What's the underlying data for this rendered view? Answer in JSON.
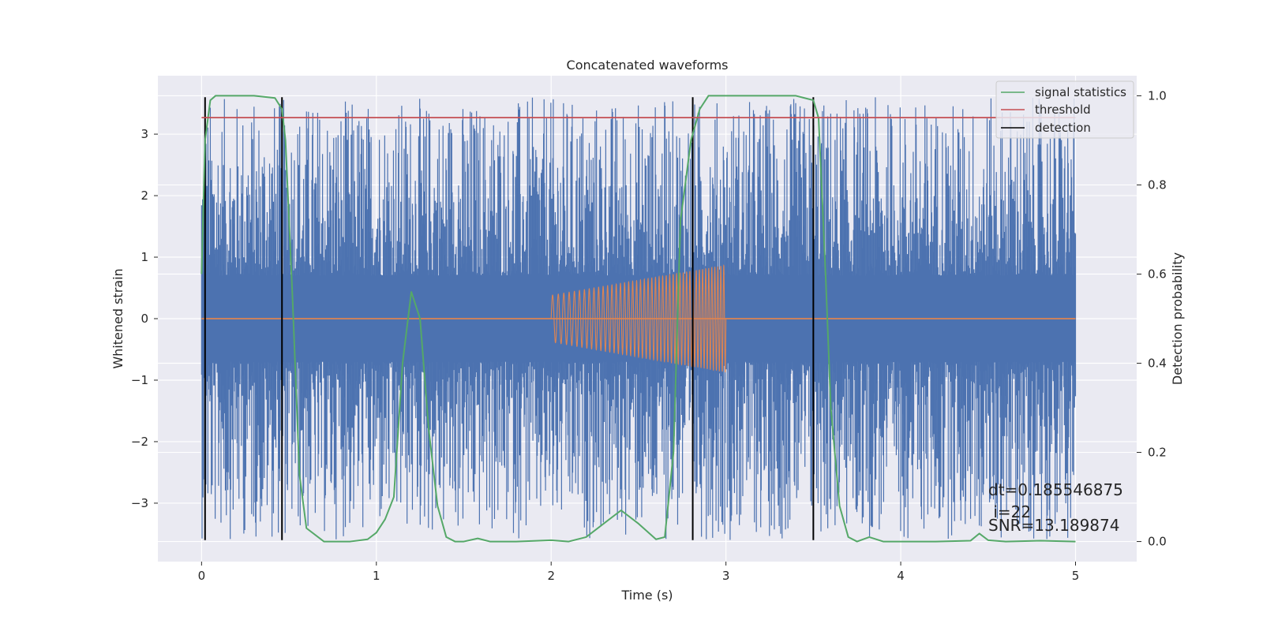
{
  "chart_data": {
    "type": "line",
    "title": "Concatenated waveforms",
    "xlabel": "Time (s)",
    "ylabel": "Whitened strain",
    "y2label": "Detection probability",
    "xlim": [
      -0.25,
      5.35
    ],
    "ylim": [
      -3.95,
      3.95
    ],
    "y2lim": [
      -0.045,
      1.045
    ],
    "xticks": [
      0,
      1,
      2,
      3,
      4,
      5
    ],
    "yticks": [
      -3,
      -2,
      -1,
      0,
      1,
      2,
      3
    ],
    "y2ticks": [
      0.0,
      0.2,
      0.4,
      0.6,
      0.8,
      1.0
    ],
    "xtick_labels": [
      "0",
      "1",
      "2",
      "3",
      "4",
      "5"
    ],
    "ytick_labels": [
      "−3",
      "−2",
      "−1",
      "0",
      "1",
      "2",
      "3"
    ],
    "y2tick_labels": [
      "0.0",
      "0.2",
      "0.4",
      "0.6",
      "0.8",
      "1.0"
    ],
    "grid": true,
    "legend_position": "top-right",
    "legend": [
      {
        "label": "signal statistics",
        "color": "#55a868"
      },
      {
        "label": "threshold",
        "color": "#c44e52"
      },
      {
        "label": "detection",
        "color": "#000000"
      }
    ],
    "noise_series": {
      "axis": "left",
      "color": "#4c72b0",
      "x_range": [
        0,
        5
      ],
      "core_amplitude": 0.7,
      "approx_peak_amplitude": 3.6,
      "description_values_sampled": true
    },
    "injected_chirp": {
      "axis": "left",
      "color": "#dd8452",
      "baseline": 0,
      "x_range": [
        0,
        5
      ],
      "chirp_start": 2.0,
      "chirp_end": 3.0,
      "start_amplitude": 0.38,
      "end_amplitude": 0.87,
      "start_frequency": 30,
      "end_frequency": 60
    },
    "signal_statistics": {
      "axis": "right",
      "color": "#55a868",
      "x": [
        0.0,
        0.02,
        0.05,
        0.08,
        0.15,
        0.3,
        0.42,
        0.46,
        0.48,
        0.52,
        0.56,
        0.6,
        0.7,
        0.85,
        0.95,
        1.0,
        1.05,
        1.1,
        1.15,
        1.2,
        1.25,
        1.3,
        1.35,
        1.4,
        1.45,
        1.5,
        1.58,
        1.65,
        1.8,
        2.0,
        2.1,
        2.2,
        2.3,
        2.4,
        2.5,
        2.6,
        2.65,
        2.7,
        2.74,
        2.8,
        2.85,
        2.9,
        3.0,
        3.2,
        3.4,
        3.5,
        3.53,
        3.57,
        3.6,
        3.65,
        3.7,
        3.75,
        3.82,
        3.9,
        4.0,
        4.2,
        4.4,
        4.45,
        4.5,
        4.6,
        4.8,
        5.0
      ],
      "y": [
        0.6,
        0.9,
        0.99,
        1.0,
        1.0,
        1.0,
        0.995,
        0.97,
        0.9,
        0.55,
        0.15,
        0.03,
        0.0,
        0.0,
        0.005,
        0.02,
        0.05,
        0.1,
        0.4,
        0.56,
        0.5,
        0.25,
        0.08,
        0.01,
        0.0,
        0.0,
        0.007,
        0.0,
        0.0,
        0.003,
        0.0,
        0.01,
        0.04,
        0.07,
        0.04,
        0.005,
        0.01,
        0.2,
        0.72,
        0.9,
        0.97,
        1.0,
        1.0,
        1.0,
        1.0,
        0.99,
        0.95,
        0.6,
        0.3,
        0.08,
        0.01,
        0.0,
        0.01,
        0.0,
        0.0,
        0.0,
        0.002,
        0.018,
        0.003,
        0.0,
        0.002,
        0.0
      ]
    },
    "threshold": {
      "axis": "right",
      "color": "#c44e52",
      "value": 0.951,
      "x_range": [
        0,
        5
      ]
    },
    "detections": {
      "color": "#000000",
      "x": [
        0.02,
        0.46,
        2.81,
        3.5
      ],
      "y_range": [
        -3.6,
        3.6
      ]
    },
    "annotations": [
      "dt=0.185546875",
      " i=22",
      "SNR=13.189874"
    ]
  }
}
